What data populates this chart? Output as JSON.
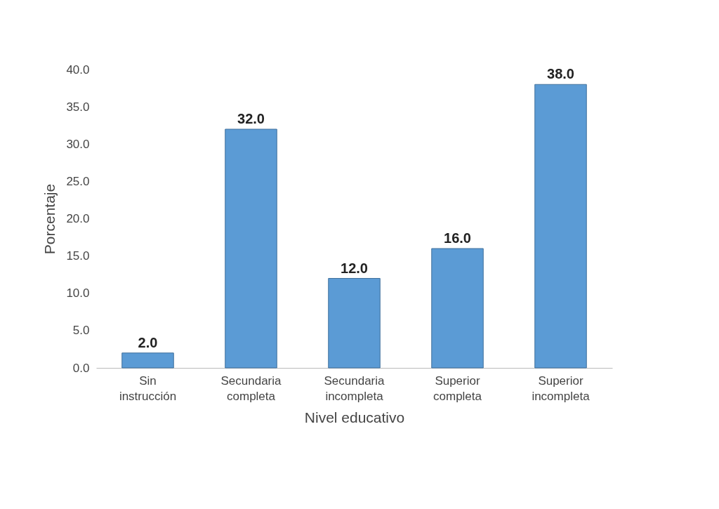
{
  "chart_data": {
    "type": "bar",
    "xlabel": "Nivel educativo",
    "ylabel": "Porcentaje",
    "categories": [
      "Sin instrucción",
      "Secundaria completa",
      "Secundaria incompleta",
      "Superior completa",
      "Superior incompleta"
    ],
    "values": [
      2.0,
      32.0,
      12.0,
      16.0,
      38.0
    ],
    "value_labels": [
      "2.0",
      "32.0",
      "12.0",
      "16.0",
      "38.0"
    ],
    "color": "#5b9bd5",
    "ylim": [
      0,
      40
    ],
    "yticks": [
      {
        "value": 0,
        "label": "0.0"
      },
      {
        "value": 5,
        "label": "5.0"
      },
      {
        "value": 10,
        "label": "10.0"
      },
      {
        "value": 15,
        "label": "15.0"
      },
      {
        "value": 20,
        "label": "20.0"
      },
      {
        "value": 25,
        "label": "25.0"
      },
      {
        "value": 30,
        "label": "30.0"
      },
      {
        "value": 35,
        "label": "35.0"
      },
      {
        "value": 40,
        "label": "40.0"
      }
    ],
    "grid": false
  }
}
